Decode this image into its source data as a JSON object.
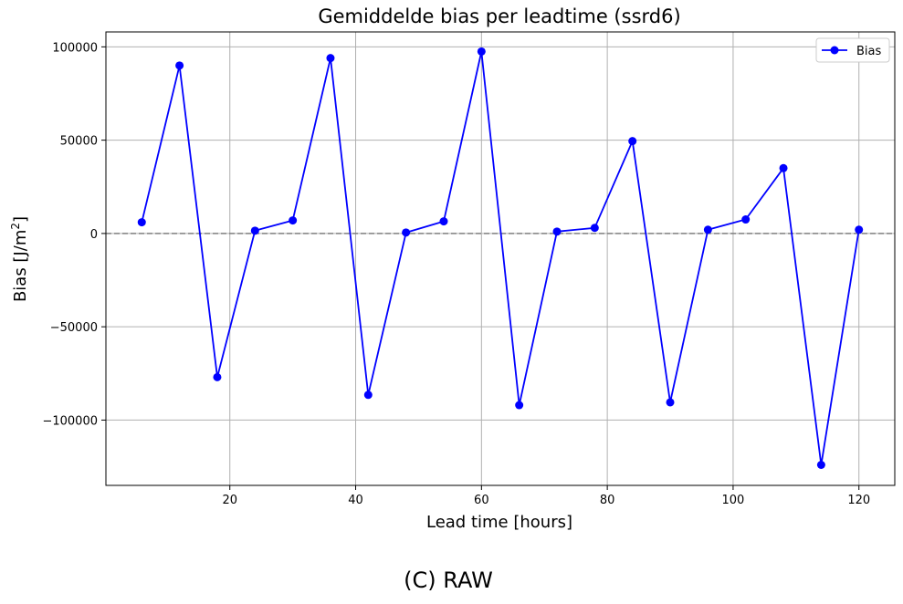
{
  "chart_data": {
    "type": "line",
    "title": "Gemiddelde bias per leadtime (ssrd6)",
    "xlabel": "Lead time [hours]",
    "ylabel_main": "Bias [J/m",
    "ylabel_sup": "2",
    "ylabel_close": "]",
    "caption": "(C) RAW",
    "xlim": [
      0.3,
      125.7
    ],
    "ylim": [
      -135000,
      108000
    ],
    "x_ticks": [
      20,
      40,
      60,
      80,
      100,
      120
    ],
    "x_tick_labels": [
      "20",
      "40",
      "60",
      "80",
      "100",
      "120"
    ],
    "y_ticks": [
      100000,
      50000,
      0,
      -50000,
      -100000
    ],
    "y_tick_labels": [
      "100000",
      "50000",
      "0",
      "−50000",
      "−100000"
    ],
    "grid": true,
    "zero_line": {
      "y": 0,
      "style": "dashed",
      "color": "#808080"
    },
    "legend": {
      "placement": "top-right"
    },
    "series": [
      {
        "name": "Bias",
        "color": "#0000ff",
        "marker": "circle",
        "x": [
          6,
          12,
          18,
          24,
          30,
          36,
          42,
          48,
          54,
          60,
          66,
          72,
          78,
          84,
          90,
          96,
          102,
          108,
          114,
          120
        ],
        "y": [
          6000,
          90000,
          -77000,
          1500,
          7000,
          94000,
          -86500,
          500,
          6500,
          97500,
          -92000,
          1000,
          3000,
          49500,
          -90500,
          2000,
          7500,
          35000,
          -124000,
          2000
        ]
      }
    ]
  }
}
